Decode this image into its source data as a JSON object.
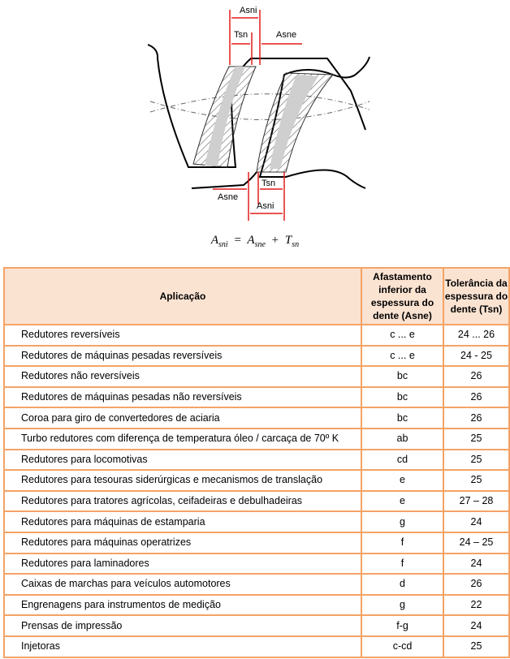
{
  "figure": {
    "labels": {
      "asni_top": "Asni",
      "tsn_top": "Tsn",
      "asne_top": "Asne",
      "tsn_bottom": "Tsn",
      "asne_bottom": "Asne",
      "asni_bottom": "Asni"
    },
    "colors": {
      "dimension": "#e31b1b",
      "outline": "#000000",
      "hatch": "#555555",
      "table_border": "#f4a366",
      "header_bg": "#fbe3d2"
    }
  },
  "formula": {
    "lhs": "A",
    "lhs_sub": "sni",
    "eq": "=",
    "t1": "A",
    "t1_sub": "sne",
    "plus": "+",
    "t2": "T",
    "t2_sub": "sn"
  },
  "table": {
    "headers": {
      "application": "Aplicação",
      "asne": "Afastamento inferior da espessura do dente (Asne)",
      "tsn": "Tolerância da espessura do dente (Tsn)"
    },
    "rows": [
      {
        "app": "Redutores reversíveis",
        "asne": "c ... e",
        "tsn": "24 ... 26"
      },
      {
        "app": "Redutores de máquinas pesadas reversíveis",
        "asne": "c ... e",
        "tsn": "24 - 25"
      },
      {
        "app": "Redutores não reversíveis",
        "asne": "bc",
        "tsn": "26"
      },
      {
        "app": "Redutores de máquinas pesadas não reversíveis",
        "asne": "bc",
        "tsn": "26"
      },
      {
        "app": "Coroa para giro de convertedores de aciaria",
        "asne": "bc",
        "tsn": "26"
      },
      {
        "app": "Turbo redutores com diferença de temperatura óleo / carcaça de 70º K",
        "asne": "ab",
        "tsn": "25"
      },
      {
        "app": "Redutores para locomotivas",
        "asne": "cd",
        "tsn": "25"
      },
      {
        "app": "Redutores para tesouras siderúrgicas e mecanismos de translação",
        "asne": "e",
        "tsn": "25"
      },
      {
        "app": "Redutores para tratores agrícolas, ceifadeiras e debulhadeiras",
        "asne": "e",
        "tsn": "27 – 28"
      },
      {
        "app": "Redutores para máquinas de estamparia",
        "asne": "g",
        "tsn": "24"
      },
      {
        "app": "Redutores para máquinas operatrizes",
        "asne": "f",
        "tsn": "24 – 25"
      },
      {
        "app": "Redutores para laminadores",
        "asne": "f",
        "tsn": "24"
      },
      {
        "app": "Caixas de marchas para veículos automotores",
        "asne": "d",
        "tsn": "26"
      },
      {
        "app": "Engrenagens para instrumentos de medição",
        "asne": "g",
        "tsn": "22"
      },
      {
        "app": "Prensas de impressão",
        "asne": "f-g",
        "tsn": "24"
      },
      {
        "app": "Injetoras",
        "asne": "c-cd",
        "tsn": "25"
      }
    ]
  }
}
